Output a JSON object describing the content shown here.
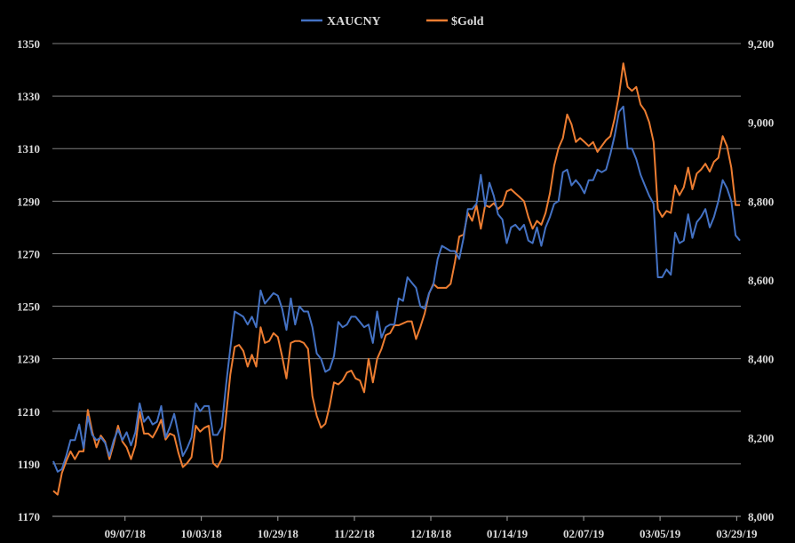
{
  "chart_data": {
    "type": "line",
    "title": "",
    "xlabel": "",
    "ylabel": "",
    "legend_position": "top-center",
    "grid": true,
    "x_tick_labels": [
      "09/07/18",
      "10/03/18",
      "10/29/18",
      "11/22/18",
      "12/18/18",
      "01/14/19",
      "02/07/19",
      "03/05/19",
      "03/29/19"
    ],
    "y_left": {
      "range": [
        1170,
        1350
      ],
      "ticks": [
        "1170",
        "1190",
        "1210",
        "1230",
        "1250",
        "1270",
        "1290",
        "1310",
        "1330",
        "1350"
      ]
    },
    "y_right": {
      "range": [
        8000,
        9200
      ],
      "ticks": [
        "8,000",
        "8,200",
        "8,400",
        "8,600",
        "8,800",
        "9,000",
        "9,200"
      ]
    },
    "series": [
      {
        "name": "XAUCNY",
        "axis": "left",
        "color": "#4472c4",
        "values": [
          1191,
          1187,
          1188,
          1193,
          1199,
          1199,
          1205,
          1196,
          1208,
          1201,
          1199,
          1200,
          1198,
          1193,
          1199,
          1203,
          1199,
          1202,
          1197,
          1202,
          1213,
          1206,
          1208,
          1205,
          1206,
          1212,
          1200,
          1204,
          1209,
          1201,
          1193,
          1196,
          1200,
          1213,
          1210,
          1212,
          1212,
          1201,
          1201,
          1204,
          1220,
          1234,
          1248,
          1247,
          1246,
          1243,
          1246,
          1242,
          1256,
          1251,
          1253,
          1255,
          1254,
          1249,
          1241,
          1253,
          1243,
          1250,
          1248,
          1248,
          1242,
          1232,
          1230,
          1225,
          1226,
          1231,
          1244,
          1242,
          1243,
          1246,
          1246,
          1244,
          1242,
          1243,
          1236,
          1248,
          1238,
          1242,
          1243,
          1243,
          1253,
          1252,
          1261,
          1259,
          1257,
          1250,
          1249,
          1255,
          1258,
          1268,
          1273,
          1272,
          1271,
          1271,
          1268,
          1276,
          1287,
          1287,
          1289,
          1300,
          1288,
          1297,
          1292,
          1285,
          1283,
          1274,
          1280,
          1281,
          1279,
          1281,
          1275,
          1274,
          1280,
          1273,
          1280,
          1284,
          1289,
          1290,
          1301,
          1302,
          1296,
          1298,
          1296,
          1293,
          1298,
          1298,
          1302,
          1301,
          1302,
          1308,
          1315,
          1324,
          1326,
          1310,
          1310,
          1306,
          1300,
          1296,
          1292,
          1289,
          1261,
          1261,
          1264,
          1262,
          1278,
          1274,
          1275,
          1285,
          1276,
          1282,
          1284,
          1287,
          1280,
          1284,
          1290,
          1298,
          1295,
          1290,
          1277,
          1275
        ]
      },
      {
        "name": "$Gold",
        "axis": "right",
        "color": "#ed7d31",
        "values": [
          8065,
          8055,
          8110,
          8140,
          8165,
          8145,
          8165,
          8165,
          8270,
          8215,
          8175,
          8205,
          8190,
          8145,
          8185,
          8230,
          8190,
          8175,
          8145,
          8180,
          8265,
          8210,
          8210,
          8200,
          8220,
          8245,
          8195,
          8210,
          8205,
          8160,
          8125,
          8135,
          8150,
          8230,
          8215,
          8225,
          8230,
          8135,
          8125,
          8145,
          8255,
          8360,
          8430,
          8435,
          8420,
          8380,
          8410,
          8380,
          8480,
          8440,
          8445,
          8465,
          8455,
          8405,
          8350,
          8440,
          8445,
          8445,
          8440,
          8425,
          8305,
          8255,
          8225,
          8235,
          8280,
          8340,
          8335,
          8345,
          8365,
          8370,
          8350,
          8345,
          8315,
          8400,
          8340,
          8400,
          8425,
          8460,
          8465,
          8485,
          8485,
          8490,
          8495,
          8495,
          8450,
          8480,
          8515,
          8565,
          8590,
          8580,
          8580,
          8580,
          8590,
          8645,
          8710,
          8715,
          8770,
          8750,
          8790,
          8730,
          8790,
          8785,
          8795,
          8780,
          8790,
          8825,
          8830,
          8820,
          8810,
          8800,
          8760,
          8730,
          8750,
          8740,
          8770,
          8820,
          8890,
          8935,
          8960,
          9020,
          8995,
          8950,
          8960,
          8950,
          8940,
          8950,
          8925,
          8940,
          8955,
          8965,
          9010,
          9070,
          9150,
          9090,
          9080,
          9090,
          9045,
          9030,
          9000,
          8950,
          8780,
          8760,
          8775,
          8770,
          8840,
          8815,
          8835,
          8885,
          8830,
          8870,
          8880,
          8895,
          8875,
          8900,
          8910,
          8965,
          8940,
          8885,
          8790,
          8790
        ]
      }
    ]
  }
}
